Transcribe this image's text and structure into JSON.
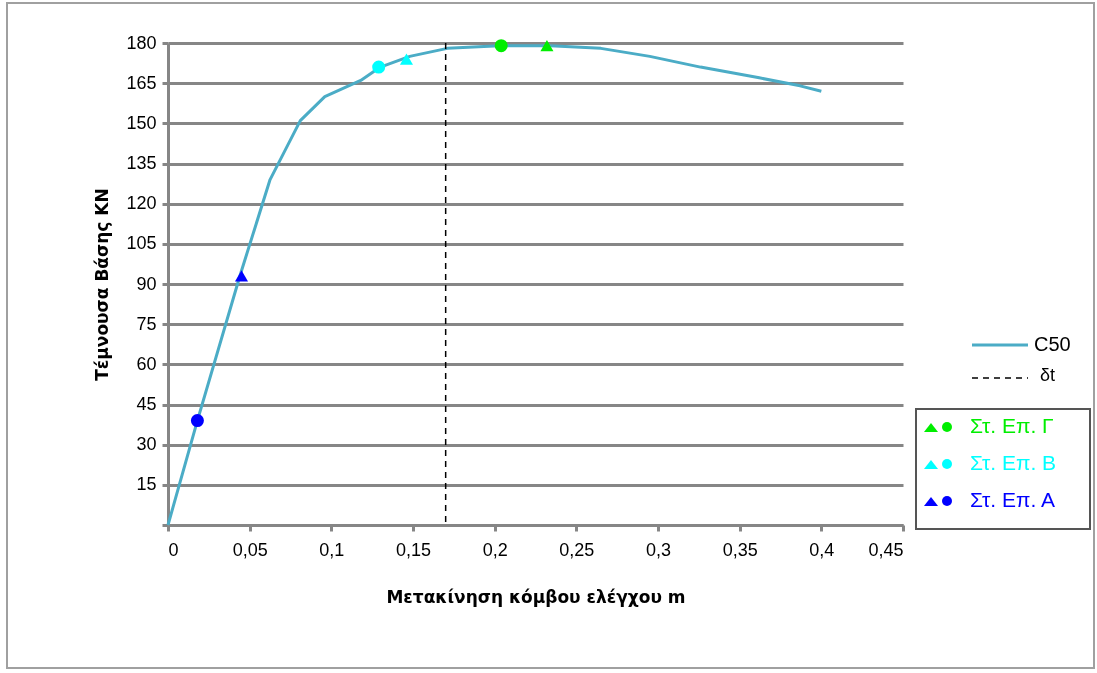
{
  "chart_data": {
    "type": "line",
    "xlabel": "Μετακίνηση κόμβου ελέγχου m",
    "ylabel": "Τέμνουσα Βάσης KN",
    "xlim": [
      0,
      0.45
    ],
    "ylim": [
      0,
      180
    ],
    "xticks": [
      0,
      {
        "value": 0.05,
        "label": "0,05"
      },
      {
        "value": 0.1,
        "label": "0,1"
      },
      {
        "value": 0.15,
        "label": "0,15"
      },
      {
        "value": 0.2,
        "label": "0,2"
      },
      {
        "value": 0.25,
        "label": "0,25"
      },
      {
        "value": 0.3,
        "label": "0,3"
      },
      {
        "value": 0.35,
        "label": "0,35"
      },
      {
        "value": 0.4,
        "label": "0,4"
      },
      {
        "value": 0.45,
        "label": "0,45"
      }
    ],
    "yticks": [
      {
        "value": 0,
        "label": null
      },
      15,
      30,
      45,
      60,
      75,
      90,
      105,
      120,
      135,
      150,
      165,
      180
    ],
    "grid": "y",
    "legend": "right",
    "series": [
      {
        "name": "C50",
        "color": "#4bacc6",
        "x": [
          0,
          0.018,
          0.044,
          0.0625,
          0.081,
          0.096,
          0.118,
          0.13,
          0.148,
          0.171,
          0.203,
          0.234,
          0.265,
          0.295,
          0.326,
          0.362,
          0.387,
          0.4
        ],
        "values": [
          0,
          39,
          93,
          129,
          151,
          160,
          166,
          171,
          175,
          178,
          179,
          179,
          178,
          175,
          171,
          167,
          164,
          162
        ]
      },
      {
        "name": "Στ. Επ. Γ",
        "type": "scatter",
        "color": "#00ee00",
        "marker": [
          "circle",
          "triangle"
        ],
        "x": [
          0.204,
          0.232
        ],
        "values": [
          179,
          179
        ]
      },
      {
        "name": "Στ. Επ. Β",
        "type": "scatter",
        "color": "#00ffff",
        "marker": [
          "circle",
          "triangle"
        ],
        "x": [
          0.129,
          0.146
        ],
        "values": [
          171,
          174
        ]
      },
      {
        "name": "Στ. Επ. Α",
        "type": "scatter",
        "color": "#0000ff",
        "marker": [
          "circle",
          "triangle"
        ],
        "x": [
          0.018,
          0.045
        ],
        "values": [
          39,
          93
        ]
      }
    ],
    "ref_lines": [
      {
        "axis": "x",
        "value": 0.17,
        "label": "δt",
        "color": "#000000",
        "line_style": "dashed"
      }
    ]
  }
}
